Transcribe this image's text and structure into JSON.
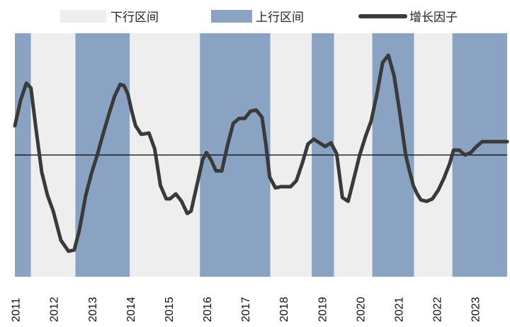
{
  "chart_data": {
    "type": "line",
    "title": "",
    "xlabel": "",
    "ylabel": "",
    "legend": {
      "placement": "top",
      "entries": [
        {
          "label": "下行区间",
          "kind": "band",
          "color": "#eeeeee"
        },
        {
          "label": "上行区间",
          "kind": "band",
          "color": "#8aa3c2"
        },
        {
          "label": "增长因子",
          "kind": "line",
          "color": "#3a3a3a"
        }
      ]
    },
    "x_ticks": [
      "2011",
      "2012",
      "2013",
      "2014",
      "2015",
      "2016",
      "2017",
      "2018",
      "2019",
      "2020",
      "2021",
      "2022",
      "2023"
    ],
    "xlim": [
      2011.0,
      2023.85
    ],
    "ylim": [
      -1.0,
      1.0
    ],
    "grid": false,
    "zero_line": true,
    "colors": {
      "down_band": "#eeeeee",
      "up_band": "#8aa3c2",
      "line": "#3a3a3a",
      "axis": "#000000"
    },
    "bands": [
      {
        "type": "up",
        "start": 2011.0,
        "end": 2011.42
      },
      {
        "type": "down",
        "start": 2011.42,
        "end": 2012.58
      },
      {
        "type": "up",
        "start": 2012.58,
        "end": 2014.0
      },
      {
        "type": "down",
        "start": 2014.0,
        "end": 2015.83
      },
      {
        "type": "up",
        "start": 2015.83,
        "end": 2017.67
      },
      {
        "type": "down",
        "start": 2017.67,
        "end": 2018.75
      },
      {
        "type": "up",
        "start": 2018.75,
        "end": 2019.33
      },
      {
        "type": "down",
        "start": 2019.33,
        "end": 2020.33
      },
      {
        "type": "up",
        "start": 2020.33,
        "end": 2021.42
      },
      {
        "type": "down",
        "start": 2021.42,
        "end": 2022.42
      },
      {
        "type": "up",
        "start": 2022.42,
        "end": 2023.85
      }
    ],
    "series": [
      {
        "name": "增长因子",
        "x": [
          2011.0,
          2011.15,
          2011.3,
          2011.42,
          2011.55,
          2011.7,
          2011.85,
          2012.0,
          2012.2,
          2012.4,
          2012.55,
          2012.68,
          2012.85,
          2013.0,
          2013.15,
          2013.3,
          2013.45,
          2013.6,
          2013.75,
          2013.85,
          2013.95,
          2014.05,
          2014.15,
          2014.3,
          2014.5,
          2014.65,
          2014.8,
          2014.95,
          2015.05,
          2015.2,
          2015.35,
          2015.5,
          2015.6,
          2015.75,
          2015.9,
          2016.0,
          2016.12,
          2016.25,
          2016.4,
          2016.55,
          2016.7,
          2016.85,
          2017.0,
          2017.15,
          2017.3,
          2017.45,
          2017.55,
          2017.65,
          2017.8,
          2017.95,
          2018.05,
          2018.2,
          2018.35,
          2018.5,
          2018.65,
          2018.8,
          2018.95,
          2019.1,
          2019.25,
          2019.4,
          2019.55,
          2019.7,
          2019.85,
          2020.0,
          2020.15,
          2020.3,
          2020.45,
          2020.6,
          2020.75,
          2020.9,
          2021.05,
          2021.2,
          2021.3,
          2021.4,
          2021.5,
          2021.6,
          2021.75,
          2021.9,
          2022.05,
          2022.2,
          2022.35,
          2022.45,
          2022.6,
          2022.75,
          2022.9,
          2023.05,
          2023.2,
          2023.35,
          2023.5,
          2023.65,
          2023.75,
          2023.85
        ],
        "values": [
          0.24,
          0.45,
          0.59,
          0.55,
          0.22,
          -0.14,
          -0.33,
          -0.46,
          -0.7,
          -0.79,
          -0.78,
          -0.62,
          -0.33,
          -0.15,
          0.0,
          0.17,
          0.33,
          0.48,
          0.58,
          0.57,
          0.5,
          0.36,
          0.24,
          0.17,
          0.18,
          0.05,
          -0.25,
          -0.36,
          -0.36,
          -0.32,
          -0.38,
          -0.48,
          -0.46,
          -0.25,
          -0.04,
          0.02,
          -0.04,
          -0.13,
          -0.13,
          0.08,
          0.26,
          0.3,
          0.3,
          0.36,
          0.37,
          0.31,
          0.09,
          -0.18,
          -0.27,
          -0.26,
          -0.26,
          -0.26,
          -0.21,
          -0.07,
          0.09,
          0.13,
          0.1,
          0.07,
          0.1,
          0.01,
          -0.35,
          -0.38,
          -0.19,
          0.0,
          0.15,
          0.28,
          0.5,
          0.76,
          0.82,
          0.65,
          0.34,
          0.0,
          -0.13,
          -0.25,
          -0.32,
          -0.37,
          -0.38,
          -0.36,
          -0.29,
          -0.19,
          -0.07,
          0.04,
          0.04,
          0.0,
          0.02,
          0.07,
          0.11,
          0.11,
          0.11,
          0.11,
          0.11,
          0.11
        ]
      }
    ]
  }
}
